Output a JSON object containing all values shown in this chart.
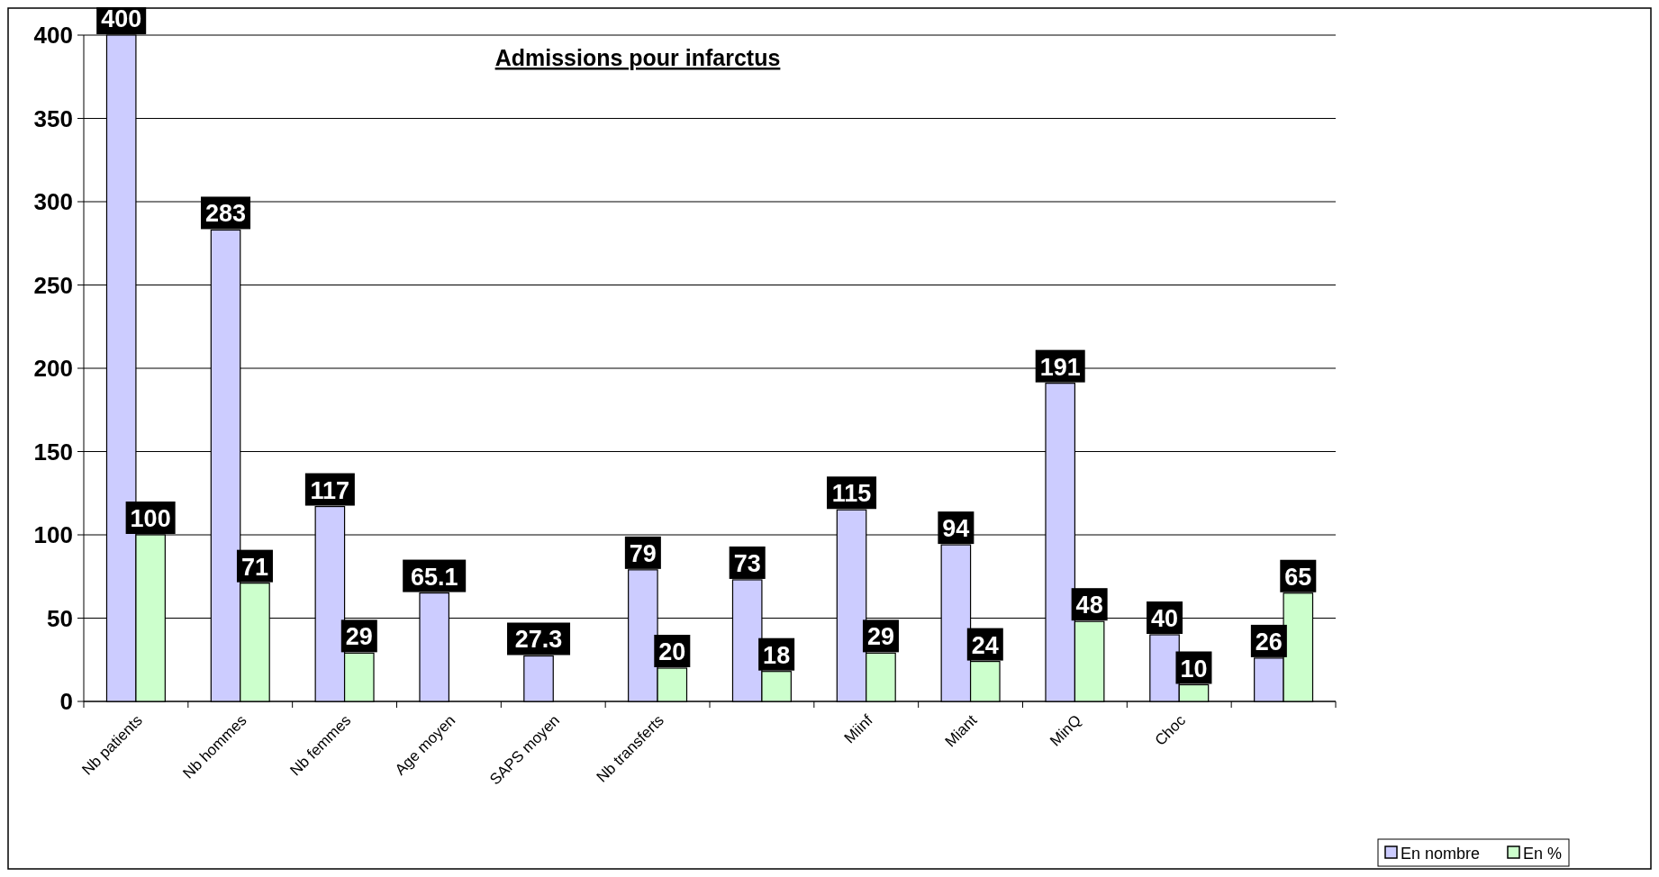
{
  "chart_data": {
    "type": "bar",
    "title": "Admissions pour infarctus",
    "categories": [
      "Nb patients",
      "Nb hommes",
      "Nb femmes",
      "Age moyen",
      "SAPS moyen",
      "Nb transferts",
      null,
      "Miinf",
      "Miant",
      "MinQ",
      "Choc",
      null
    ],
    "series": [
      {
        "name": "En nombre",
        "color": "#ccccff",
        "values": [
          400,
          283,
          117,
          65.1,
          27.3,
          79,
          73,
          115,
          94,
          191,
          40,
          26
        ]
      },
      {
        "name": "En %",
        "color": "#ccffcc",
        "values": [
          100,
          71,
          29,
          null,
          null,
          20,
          18,
          29,
          24,
          48,
          10,
          65
        ]
      }
    ],
    "ylim": [
      0,
      400
    ],
    "yticks": [
      0,
      50,
      100,
      150,
      200,
      250,
      300,
      350,
      400
    ],
    "grid": "y",
    "legend": "bottom right",
    "data_labels": true
  }
}
